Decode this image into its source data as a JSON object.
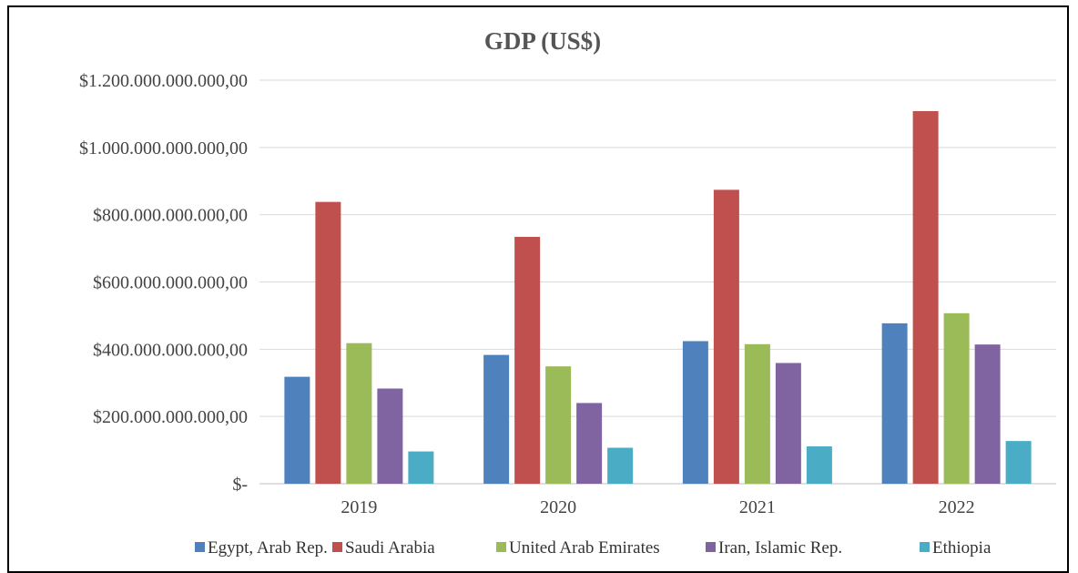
{
  "chart_data": {
    "type": "bar",
    "title": "GDP (US$)",
    "xlabel": "",
    "ylabel": "",
    "categories": [
      "2019",
      "2020",
      "2021",
      "2022"
    ],
    "ylim": [
      0,
      1200000000000
    ],
    "yticks": [
      {
        "value": 0,
        "label": "$-"
      },
      {
        "value": 200000000000,
        "label": "$200.000.000.000,00"
      },
      {
        "value": 400000000000,
        "label": "$400.000.000.000,00"
      },
      {
        "value": 600000000000,
        "label": "$600.000.000.000,00"
      },
      {
        "value": 800000000000,
        "label": "$800.000.000.000,00"
      },
      {
        "value": 1000000000000,
        "label": "$1.000.000.000.000,00"
      },
      {
        "value": 1200000000000,
        "label": "$1.200.000.000.000,00"
      }
    ],
    "grid": true,
    "legend_position": "bottom",
    "series": [
      {
        "name": "Egypt, Arab Rep.",
        "color": "#4F81BD",
        "values": [
          318000000000,
          383000000000,
          424000000000,
          477000000000
        ]
      },
      {
        "name": "Saudi Arabia",
        "color": "#C0504D",
        "values": [
          838000000000,
          734000000000,
          874000000000,
          1108000000000
        ]
      },
      {
        "name": "United Arab Emirates",
        "color": "#9BBB59",
        "values": [
          418000000000,
          349000000000,
          415000000000,
          507000000000
        ]
      },
      {
        "name": "Iran, Islamic Rep.",
        "color": "#8064A2",
        "values": [
          283000000000,
          240000000000,
          359000000000,
          414000000000
        ]
      },
      {
        "name": "Ethiopia",
        "color": "#4BACC6",
        "values": [
          96000000000,
          107000000000,
          111000000000,
          127000000000
        ]
      }
    ]
  }
}
